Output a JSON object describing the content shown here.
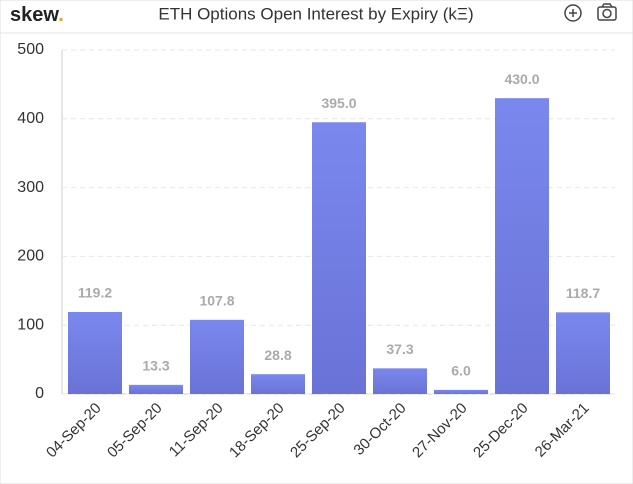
{
  "header": {
    "logo": "skew",
    "logo_dot": "."
  },
  "chart_data": {
    "type": "bar",
    "title": "ETH Options Open Interest by Expiry (kΞ)",
    "categories": [
      "04-Sep-20",
      "05-Sep-20",
      "11-Sep-20",
      "18-Sep-20",
      "25-Sep-20",
      "30-Oct-20",
      "27-Nov-20",
      "25-Dec-20",
      "26-Mar-21"
    ],
    "values": [
      119.2,
      13.3,
      107.8,
      28.8,
      395.0,
      37.3,
      6.0,
      430.0,
      118.7
    ],
    "value_labels": [
      "119.2",
      "13.3",
      "107.8",
      "28.8",
      "395.0",
      "37.3",
      "6.0",
      "430.0",
      "118.7"
    ],
    "color": "#7a88ee",
    "ylim": [
      0,
      500
    ],
    "yticks": [
      0,
      100,
      200,
      300,
      400,
      500
    ],
    "grid": true
  }
}
